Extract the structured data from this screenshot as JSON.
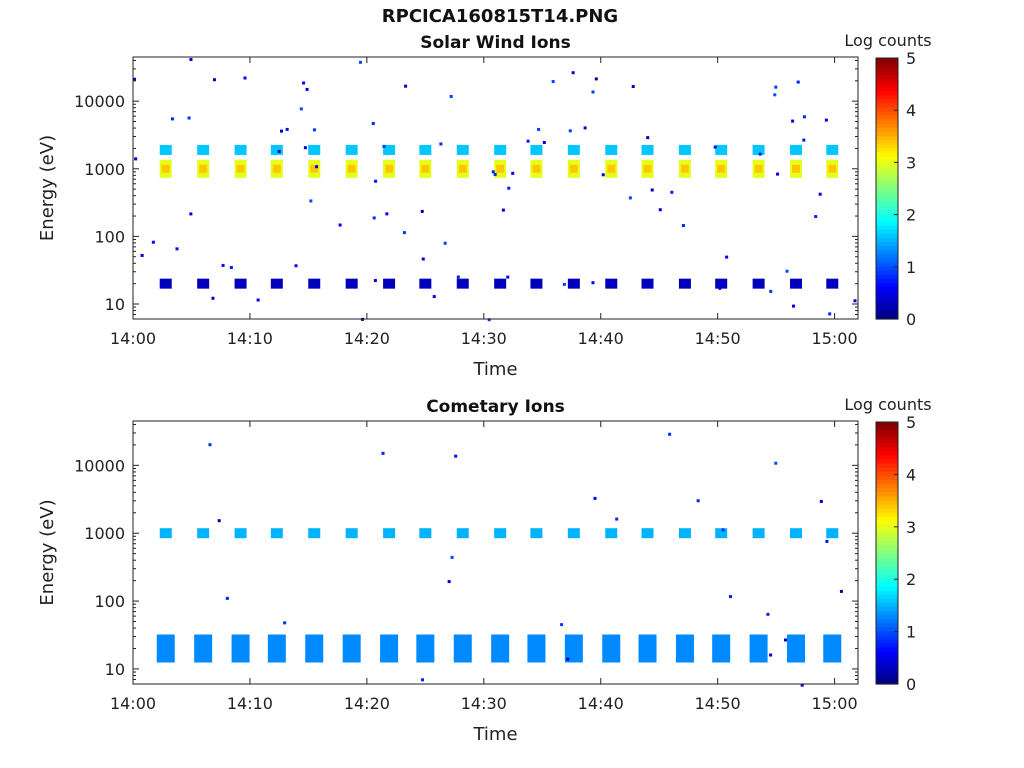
{
  "figure": {
    "title": "RPCICA160815T14.PNG"
  },
  "chart_data": [
    {
      "type": "heatmap",
      "title": "Solar Wind Ions",
      "xlabel": "Time",
      "ylabel": "Energy (eV)",
      "x_ticks": [
        "14:00",
        "14:10",
        "14:20",
        "14:30",
        "14:40",
        "14:50",
        "15:00"
      ],
      "y_ticks": [
        "10",
        "100",
        "1000",
        "10000"
      ],
      "ylim": [
        6,
        45000
      ],
      "yscale": "log",
      "xlim_minutes": [
        0,
        62
      ],
      "colorbar": {
        "label": "Log counts",
        "range": [
          0,
          5
        ],
        "ticks": [
          "0",
          "1",
          "2",
          "3",
          "4",
          "5"
        ]
      },
      "scan_minutes": [
        2.8,
        6.0,
        9.2,
        12.3,
        15.5,
        18.7,
        21.9,
        25.0,
        28.2,
        31.4,
        34.5,
        37.7,
        40.9,
        44.0,
        47.2,
        50.3,
        53.5,
        56.7,
        59.8
      ],
      "bands": [
        {
          "energy_eV": 1000,
          "log_counts": 3.0
        },
        {
          "energy_eV": 1900,
          "log_counts": 1.6
        },
        {
          "energy_eV": 20,
          "log_counts": 0.3
        }
      ]
    },
    {
      "type": "heatmap",
      "title": "Cometary Ions",
      "xlabel": "Time",
      "ylabel": "Energy (eV)",
      "x_ticks": [
        "14:00",
        "14:10",
        "14:20",
        "14:30",
        "14:40",
        "14:50",
        "15:00"
      ],
      "y_ticks": [
        "10",
        "100",
        "1000",
        "10000"
      ],
      "ylim": [
        6,
        45000
      ],
      "yscale": "log",
      "xlim_minutes": [
        0,
        62
      ],
      "colorbar": {
        "label": "Log counts",
        "range": [
          0,
          5
        ],
        "ticks": [
          "0",
          "1",
          "2",
          "3",
          "4",
          "5"
        ]
      },
      "scan_minutes": [
        2.8,
        6.0,
        9.2,
        12.3,
        15.5,
        18.7,
        21.9,
        25.0,
        28.2,
        31.4,
        34.5,
        37.7,
        40.9,
        44.0,
        47.2,
        50.3,
        53.5,
        56.7,
        59.8
      ],
      "bands": [
        {
          "energy_eV": 1000,
          "log_counts": 1.5
        },
        {
          "energy_eV": 20,
          "log_counts": 1.3
        }
      ]
    }
  ]
}
